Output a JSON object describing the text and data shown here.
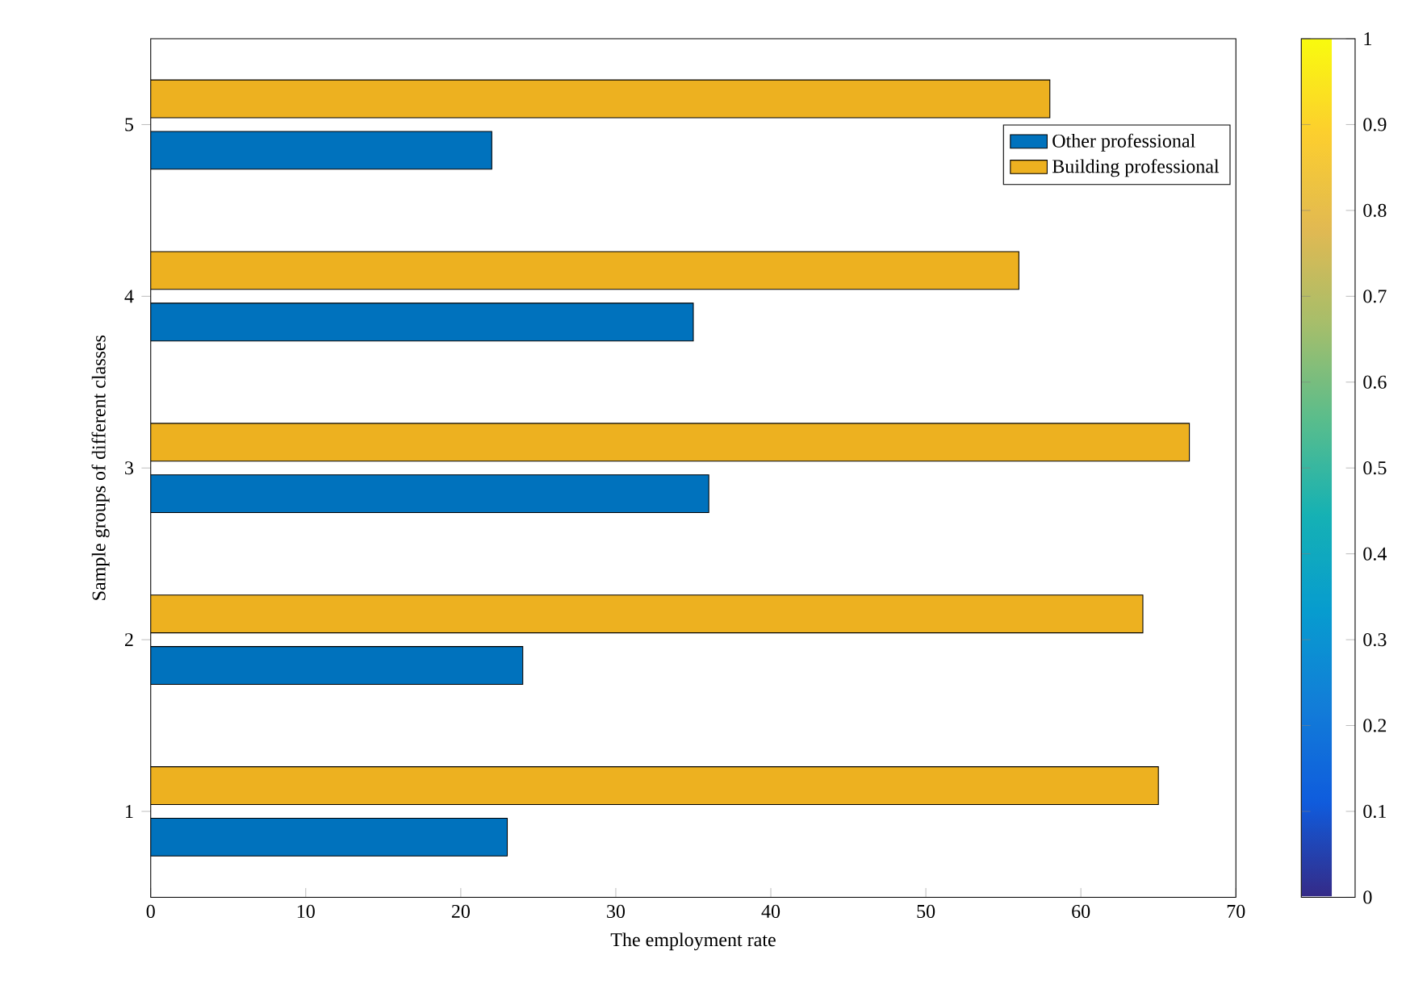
{
  "chart_data": {
    "type": "bar",
    "orientation": "horizontal",
    "xlabel": "The employment rate",
    "ylabel": "Sample groups of different classes",
    "categories": [
      "5",
      "4",
      "3",
      "2",
      "1"
    ],
    "series": [
      {
        "name": "Other professional",
        "color": "#0072bd",
        "values": [
          22,
          35,
          36,
          24,
          23
        ]
      },
      {
        "name": "Building professional",
        "color": "#edb120",
        "values": [
          58,
          56,
          67,
          64,
          65
        ]
      }
    ],
    "xlim": [
      0,
      70
    ],
    "xticks": [
      0,
      10,
      20,
      30,
      40,
      50,
      60,
      70
    ],
    "legend": "top right",
    "clim": [
      0,
      1
    ],
    "cticks": [
      0,
      0.1,
      0.2,
      0.3,
      0.4,
      0.5,
      0.6,
      0.7,
      0.8,
      0.9,
      1
    ]
  }
}
